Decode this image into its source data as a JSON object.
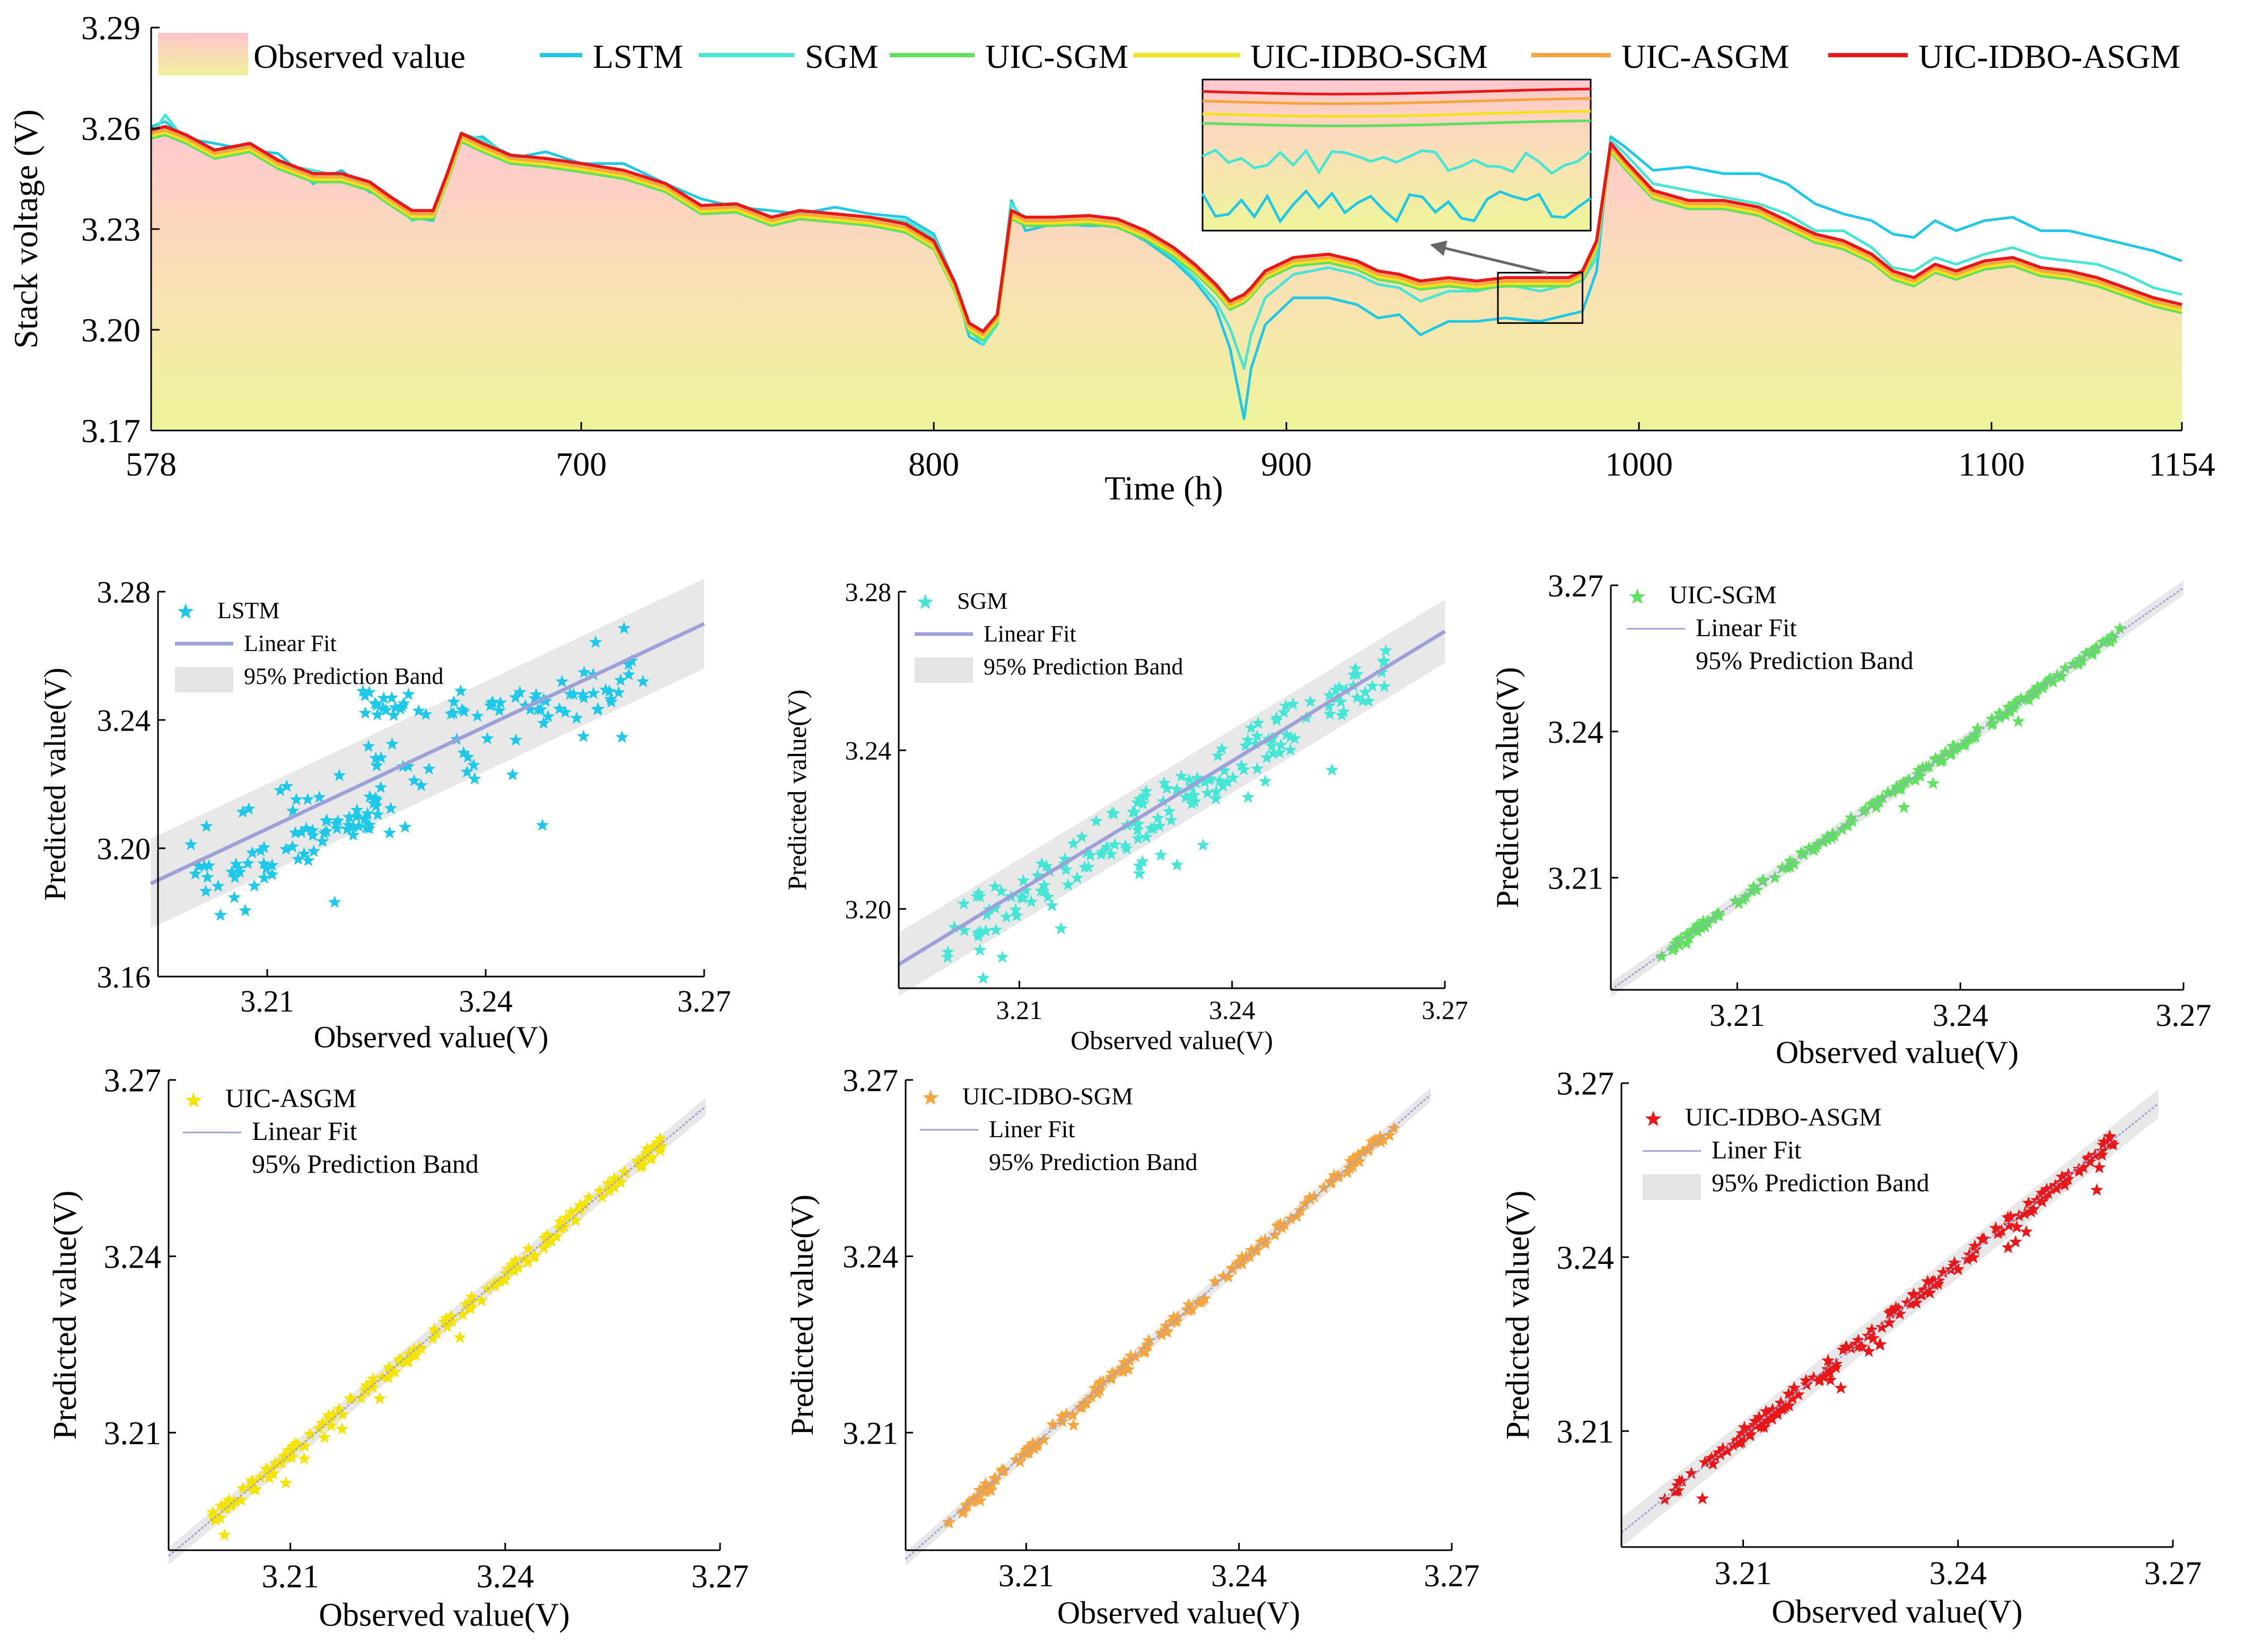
{
  "chart_data": [
    {
      "id": "main",
      "type": "line",
      "xlabel": "Time (h)",
      "ylabel": "Stack voltage (V)",
      "xlim": [
        578,
        1154
      ],
      "ylim": [
        3.17,
        3.29
      ],
      "xticks": [
        578,
        700,
        800,
        900,
        1000,
        1100,
        1154
      ],
      "yticks": [
        "3.17",
        "3.20",
        "3.23",
        "3.26",
        "3.29"
      ],
      "legend": [
        "Observed value",
        "LSTM",
        "SGM",
        "UIC-SGM",
        "UIC-IDBO-SGM",
        "UIC-ASGM",
        "UIC-IDBO-ASGM"
      ],
      "observed": {
        "x": [
          578,
          582,
          588,
          596,
          606,
          614,
          624,
          632,
          640,
          646,
          652,
          658,
          662,
          666,
          672,
          680,
          690,
          700,
          712,
          724,
          734,
          744,
          754,
          762,
          772,
          782,
          792,
          800,
          806,
          810,
          814,
          818,
          822,
          826,
          834,
          844,
          852,
          860,
          868,
          874,
          880,
          884,
          888,
          890,
          894,
          902,
          912,
          920,
          926,
          932,
          938,
          946,
          954,
          962,
          972,
          980,
          984,
          988,
          992,
          996,
          1004,
          1014,
          1024,
          1034,
          1042,
          1050,
          1058,
          1066,
          1072,
          1078,
          1084,
          1090,
          1098,
          1106,
          1114,
          1122,
          1130,
          1138,
          1146,
          1154
        ],
        "y": [
          3.2595,
          3.2605,
          3.258,
          3.2535,
          3.2555,
          3.2505,
          3.2465,
          3.2465,
          3.244,
          3.2395,
          3.2355,
          3.2355,
          3.2465,
          3.2585,
          3.2555,
          3.252,
          3.251,
          3.2495,
          3.2475,
          3.2435,
          3.237,
          3.2375,
          3.2335,
          3.2355,
          3.2345,
          3.2335,
          3.2315,
          3.2265,
          3.214,
          3.202,
          3.1995,
          3.2045,
          3.2355,
          3.2335,
          3.2335,
          3.234,
          3.233,
          3.2295,
          3.2245,
          3.2195,
          3.2135,
          3.2085,
          3.2105,
          3.2125,
          3.2175,
          3.2215,
          3.2225,
          3.2205,
          3.2175,
          3.2165,
          3.2145,
          3.2155,
          3.2145,
          3.2155,
          3.2155,
          3.2155,
          3.2175,
          3.2265,
          3.2555,
          3.2505,
          3.2415,
          3.2385,
          3.2385,
          3.2365,
          3.2325,
          3.2285,
          3.2265,
          3.2225,
          3.2175,
          3.2155,
          3.2195,
          3.2175,
          3.2205,
          3.2215,
          3.2185,
          3.2175,
          3.2155,
          3.2125,
          3.2095,
          3.2075
        ]
      },
      "series": [
        {
          "name": "LSTM",
          "color": "#1ec8e8",
          "offset": [
            0.001,
            0.0015,
            -0.001,
            0.002,
            -0.002,
            0.002,
            -0.003,
            0.001,
            -0.003,
            0.0,
            -0.002,
            -0.003,
            0.0,
            -0.002,
            0.002,
            -0.001,
            0.002,
            0.0,
            0.002,
            0.0,
            0.002,
            -0.001,
            0.002,
            -0.001,
            0.002,
            0.001,
            0.002,
            0.002,
            0.0,
            -0.004,
            -0.004,
            -0.002,
            0.003,
            -0.004,
            -0.002,
            -0.003,
            -0.002,
            -0.003,
            -0.004,
            -0.005,
            -0.007,
            -0.014,
            -0.037,
            -0.024,
            -0.016,
            -0.012,
            -0.013,
            -0.013,
            -0.014,
            -0.012,
            -0.016,
            -0.013,
            -0.012,
            -0.012,
            -0.013,
            -0.011,
            -0.012,
            -0.009,
            0.002,
            0.004,
            0.006,
            0.01,
            0.008,
            0.01,
            0.011,
            0.009,
            0.008,
            0.01,
            0.011,
            0.012,
            0.013,
            0.012,
            0.012,
            0.012,
            0.011,
            0.012,
            0.012,
            0.013,
            0.014,
            0.013
          ]
        },
        {
          "name": "SGM",
          "color": "#45e6d6",
          "offset": [
            -0.002,
            0.0035,
            -0.002,
            -0.001,
            0.0,
            -0.001,
            0.001,
            -0.001,
            0.0,
            0.0,
            -0.003,
            -0.001,
            -0.001,
            0.0,
            0.001,
            0.0,
            0.0,
            0.0,
            0.0,
            0.0,
            0.0,
            0.0,
            0.0,
            0.0,
            0.0,
            0.0,
            0.001,
            0.001,
            0.0,
            -0.002,
            -0.004,
            -0.003,
            0.002,
            -0.001,
            -0.002,
            -0.002,
            -0.001,
            -0.002,
            -0.003,
            -0.004,
            -0.005,
            -0.008,
            -0.022,
            -0.014,
            -0.008,
            -0.005,
            -0.004,
            -0.004,
            -0.004,
            -0.004,
            -0.006,
            -0.004,
            -0.003,
            -0.002,
            -0.004,
            -0.002,
            -0.003,
            -0.005,
            0.001,
            0.002,
            0.002,
            0.003,
            0.001,
            0.001,
            0.002,
            0.001,
            0.003,
            0.002,
            0.001,
            0.002,
            0.002,
            0.002,
            0.002,
            0.003,
            0.003,
            0.003,
            0.004,
            0.004,
            0.003,
            0.003
          ]
        },
        {
          "name": "UIC-SGM",
          "color": "#5fe05f",
          "offset": -0.0025
        },
        {
          "name": "UIC-IDBO-SGM",
          "color": "#f2e21a",
          "offset": -0.0018
        },
        {
          "name": "UIC-ASGM",
          "color": "#f6a53c",
          "offset": -0.001
        },
        {
          "name": "UIC-IDBO-ASGM",
          "color": "#e81818",
          "offset": 0.0
        }
      ],
      "zoom_window": {
        "x": [
          960,
          984
        ],
        "y": [
          3.202,
          3.217
        ]
      }
    },
    {
      "id": "lstm",
      "type": "scatter",
      "color": "#1ec8e8",
      "legend": [
        "LSTM",
        "Linear Fit",
        "95% Prediction Band"
      ],
      "xlabel": "Observed value(V)",
      "ylabel": "Predicted value(V)",
      "xlim": [
        3.195,
        3.27
      ],
      "ylim": [
        3.16,
        3.28
      ],
      "xticks": [
        "3.21",
        "3.24",
        "3.27"
      ],
      "yticks": [
        "3.16",
        "3.20",
        "3.24",
        "3.28"
      ],
      "fit": [
        [
          3.194,
          3.189
        ],
        [
          3.27,
          3.27
        ]
      ],
      "band": 0.014,
      "spread": 0.012,
      "outliers": 0.32,
      "seed": 3
    },
    {
      "id": "sgm",
      "type": "scatter",
      "color": "#45e6d6",
      "legend": [
        "SGM",
        "Linear Fit",
        "95% Prediction Band"
      ],
      "xlabel": "Observed value(V)",
      "ylabel": "Predicted value(V)",
      "xlim": [
        3.193,
        3.27
      ],
      "ylim": [
        3.18,
        3.28
      ],
      "xticks": [
        "3.21",
        "3.24",
        "3.27"
      ],
      "yticks": [
        "3.20",
        "3.24",
        "3.28"
      ],
      "fit": [
        [
          3.193,
          3.186
        ],
        [
          3.27,
          3.27
        ]
      ],
      "band": 0.008,
      "spread": 0.006,
      "outliers": 0.12,
      "seed": 7
    },
    {
      "id": "uic-sgm",
      "type": "scatter",
      "color": "#5fe05f",
      "legend": [
        "UIC-SGM",
        "Linear Fit",
        "95% Prediction Band"
      ],
      "xlabel": "Observed value(V)",
      "ylabel": "Predicted value(V)",
      "xlim": [
        3.193,
        3.27
      ],
      "ylim": [
        3.187,
        3.27
      ],
      "xticks": [
        "3.21",
        "3.24",
        "3.27"
      ],
      "yticks": [
        "3.21",
        "3.24",
        "3.27"
      ],
      "fit": [
        [
          3.193,
          3.187
        ],
        [
          3.27,
          3.2695
        ]
      ],
      "band": 0.0015,
      "spread": 0.0008,
      "outliers": 0.03,
      "seed": 11
    },
    {
      "id": "uic-asgm",
      "type": "scatter",
      "color": "#f5e400",
      "legend": [
        "UIC-ASGM",
        "Linear Fit",
        "95% Prediction Band"
      ],
      "xlabel": "Observed value(V)",
      "ylabel": "Predicted value(V)",
      "xlim": [
        3.193,
        3.27
      ],
      "ylim": [
        3.19,
        3.27
      ],
      "xticks": [
        "3.21",
        "3.24",
        "3.27"
      ],
      "yticks": [
        "3.21",
        "3.24",
        "3.27"
      ],
      "fit": [
        [
          3.193,
          3.189
        ],
        [
          3.268,
          3.2655
        ]
      ],
      "band": 0.0015,
      "spread": 0.0012,
      "outliers": 0.06,
      "seed": 13
    },
    {
      "id": "uic-idbo-sgm",
      "type": "scatter",
      "color": "#f6a53c",
      "legend": [
        "UIC-IDBO-SGM",
        "Liner Fit",
        "95% Prediction Band"
      ],
      "xlabel": "Observed value(V)",
      "ylabel": "Predicted value(V)",
      "xlim": [
        3.193,
        3.27
      ],
      "ylim": [
        3.19,
        3.27
      ],
      "xticks": [
        "3.21",
        "3.24",
        "3.27"
      ],
      "yticks": [
        "3.21",
        "3.24",
        "3.27"
      ],
      "fit": [
        [
          3.193,
          3.1885
        ],
        [
          3.267,
          3.2675
        ]
      ],
      "band": 0.0012,
      "spread": 0.0008,
      "outliers": 0.03,
      "seed": 17
    },
    {
      "id": "uic-idbo-asgm",
      "type": "scatter",
      "color": "#e81818",
      "legend": [
        "UIC-IDBO-ASGM",
        "Liner Fit",
        "95% Prediction Band"
      ],
      "xlabel": "Observed value(V)",
      "ylabel": "Predicted value(V)",
      "xlim": [
        3.193,
        3.27
      ],
      "ylim": [
        3.19,
        3.27
      ],
      "xticks": [
        "3.21",
        "3.24",
        "3.27"
      ],
      "yticks": [
        "3.21",
        "3.24",
        "3.27"
      ],
      "fit": [
        [
          3.193,
          3.1925
        ],
        [
          3.268,
          3.2665
        ]
      ],
      "band": 0.0025,
      "spread": 0.0012,
      "outliers": 0.07,
      "seed": 19
    }
  ]
}
